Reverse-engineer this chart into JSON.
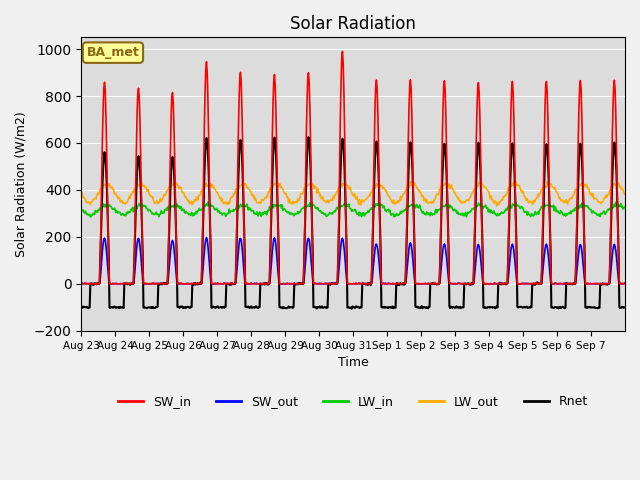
{
  "title": "Solar Radiation",
  "xlabel": "Time",
  "ylabel": "Solar Radiation (W/m2)",
  "ylim": [
    -200,
    1050
  ],
  "background_color": "#dcdcdc",
  "annotation_text": "BA_met",
  "annotation_facecolor": "#ffff99",
  "annotation_edgecolor": "#8B6914",
  "xtick_labels": [
    "Aug 23",
    "Aug 24",
    "Aug 25",
    "Aug 26",
    "Aug 27",
    "Aug 28",
    "Aug 29",
    "Aug 30",
    "Aug 31",
    "Sep 1",
    "Sep 2",
    "Sep 3",
    "Sep 4",
    "Sep 5",
    "Sep 6",
    "Sep 7"
  ],
  "colors": {
    "SW_in": "#ff0000",
    "SW_out": "#0000ff",
    "LW_in": "#00cc00",
    "LW_out": "#ffaa00",
    "Rnet": "#000000"
  },
  "SW_in_peaks": [
    860,
    835,
    815,
    945,
    900,
    890,
    900,
    990,
    870,
    870,
    865,
    860,
    860,
    865,
    865,
    865
  ],
  "SW_out_peaks": [
    195,
    195,
    185,
    195,
    195,
    195,
    195,
    195,
    170,
    175,
    170,
    168,
    168,
    170,
    168,
    168
  ],
  "Rnet_peaks": [
    560,
    545,
    540,
    625,
    615,
    620,
    625,
    620,
    610,
    605,
    600,
    600,
    600,
    600,
    600,
    600
  ],
  "LW_in_base": 315,
  "LW_out_base": 385,
  "night_rnet": -100
}
